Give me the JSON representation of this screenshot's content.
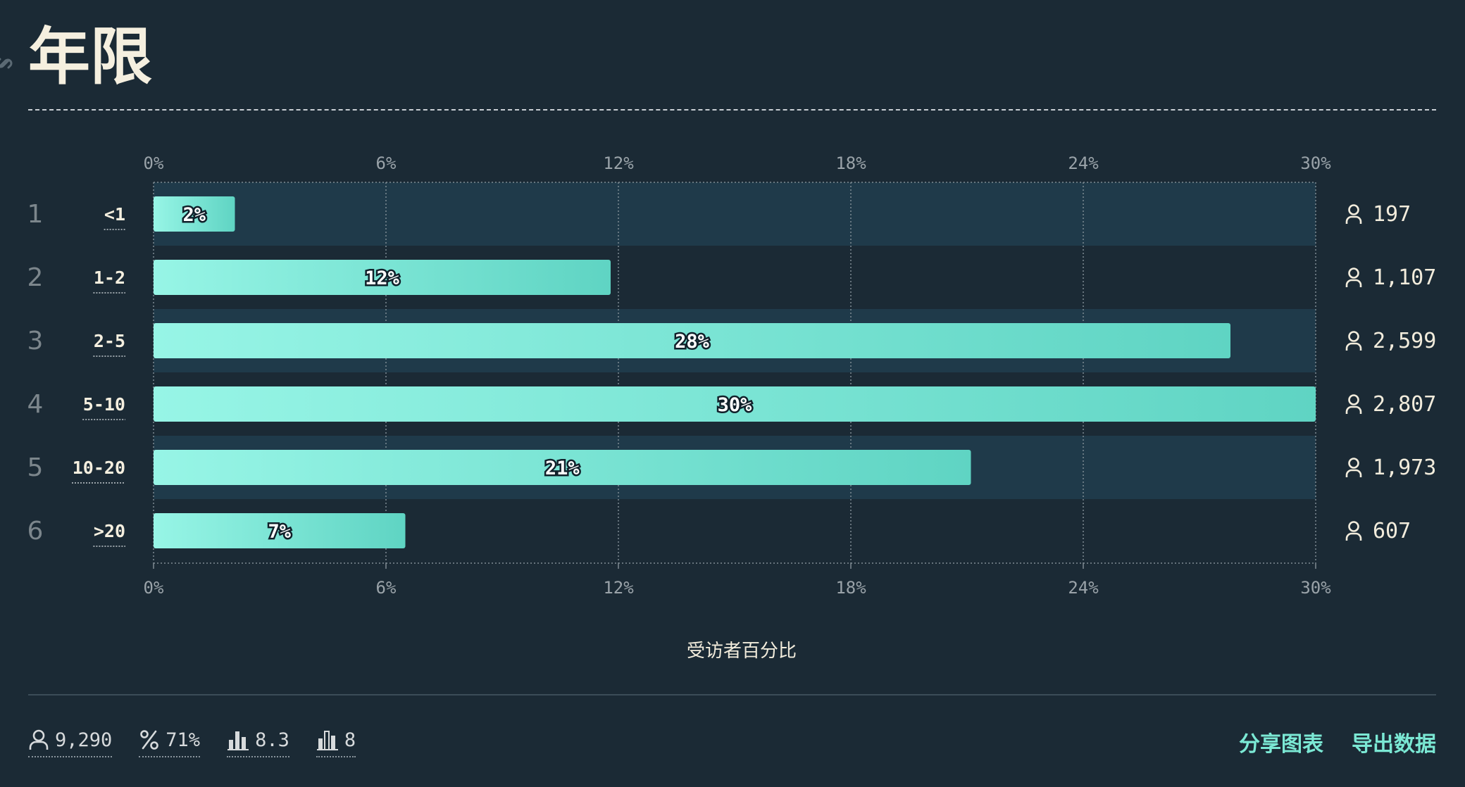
{
  "header": {
    "title": "年限"
  },
  "chart_data": {
    "type": "bar",
    "orientation": "horizontal",
    "categories": [
      "<1",
      "1-2",
      "2-5",
      "5-10",
      "10-20",
      ">20"
    ],
    "rank": [
      "1",
      "2",
      "3",
      "4",
      "5",
      "6"
    ],
    "values": [
      2.1,
      11.8,
      27.8,
      30,
      21.1,
      6.5
    ],
    "value_labels": [
      "2%",
      "12%",
      "28%",
      "30%",
      "21%",
      "7%"
    ],
    "counts": [
      "197",
      "1,107",
      "2,599",
      "2,807",
      "1,973",
      "607"
    ],
    "xticks": [
      "0%",
      "6%",
      "12%",
      "18%",
      "24%",
      "30%"
    ],
    "xtick_values": [
      0,
      6,
      12,
      18,
      24,
      30
    ],
    "xlim": [
      0,
      30
    ],
    "xlabel": "受访者百分比",
    "ylabel": "",
    "grid": true,
    "bar_color_start": "#97f5e6",
    "bar_color_end": "#5fd4c3"
  },
  "footer": {
    "stats": [
      {
        "icon": "person-icon",
        "value": "9,290"
      },
      {
        "icon": "percent-icon",
        "value": "71%"
      },
      {
        "icon": "bar-chart-icon",
        "value": "8.3"
      },
      {
        "icon": "bar-chart-outline-icon",
        "value": "8"
      }
    ],
    "actions": {
      "share": "分享图表",
      "export": "导出数据"
    }
  },
  "colors": {
    "background": "#1b2a35",
    "row_band": "#1f3a4a",
    "accent": "#7be8d4",
    "text": "#f2ecdc"
  }
}
